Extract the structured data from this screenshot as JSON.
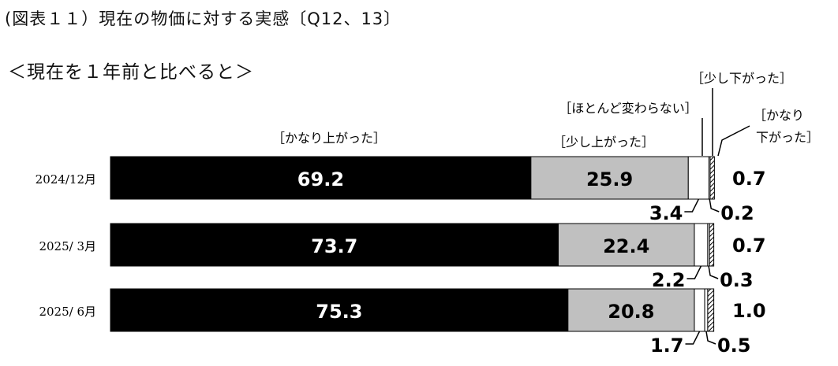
{
  "title": "(図表１１）現在の物価に対する実感〔Q12、13〕",
  "subtitle": "＜現在を１年前と比べると＞",
  "chart_data": {
    "type": "bar",
    "orientation": "horizontal",
    "stacked": true,
    "categories": [
      "2024/12月",
      "2025/ 3月",
      "2025/ 6月"
    ],
    "series": [
      {
        "name": "［かなり上がった］",
        "values": [
          69.2,
          73.7,
          75.3
        ],
        "color": "#000000"
      },
      {
        "name": "［少し上がった］",
        "values": [
          25.9,
          22.4,
          20.8
        ],
        "color": "#c0c0c0"
      },
      {
        "name": "［ほとんど変わらない］",
        "values": [
          3.4,
          2.2,
          1.7
        ],
        "color": "#ffffff"
      },
      {
        "name": "［少し下がった］",
        "values": [
          0.2,
          0.3,
          0.5
        ],
        "color": "#ffffff"
      },
      {
        "name": "［かなり下がった］",
        "values": [
          0.7,
          0.7,
          1.0
        ],
        "color": "hatched"
      }
    ],
    "value_labels": {
      "bar_1": [
        "69.2",
        "73.7",
        "75.3"
      ],
      "bar_2": [
        "25.9",
        "22.4",
        "20.8"
      ],
      "bar_3": [
        "3.4",
        "2.2",
        "1.7"
      ],
      "bar_4": [
        "0.2",
        "0.3",
        "0.5"
      ],
      "bar_5": [
        "0.7",
        "0.7",
        "1.0"
      ]
    },
    "legend_labels": {
      "strong_up": "［かなり上がった］",
      "slight_up": "［少し上がった］",
      "unchanged": "［ほとんど変わらない］",
      "slight_down": "［少し下がった］",
      "strong_down_line1": "［かなり",
      "strong_down_line2": "下がった］"
    },
    "xlim": [
      0,
      100
    ],
    "grid": false,
    "legend": "labels above bars"
  }
}
